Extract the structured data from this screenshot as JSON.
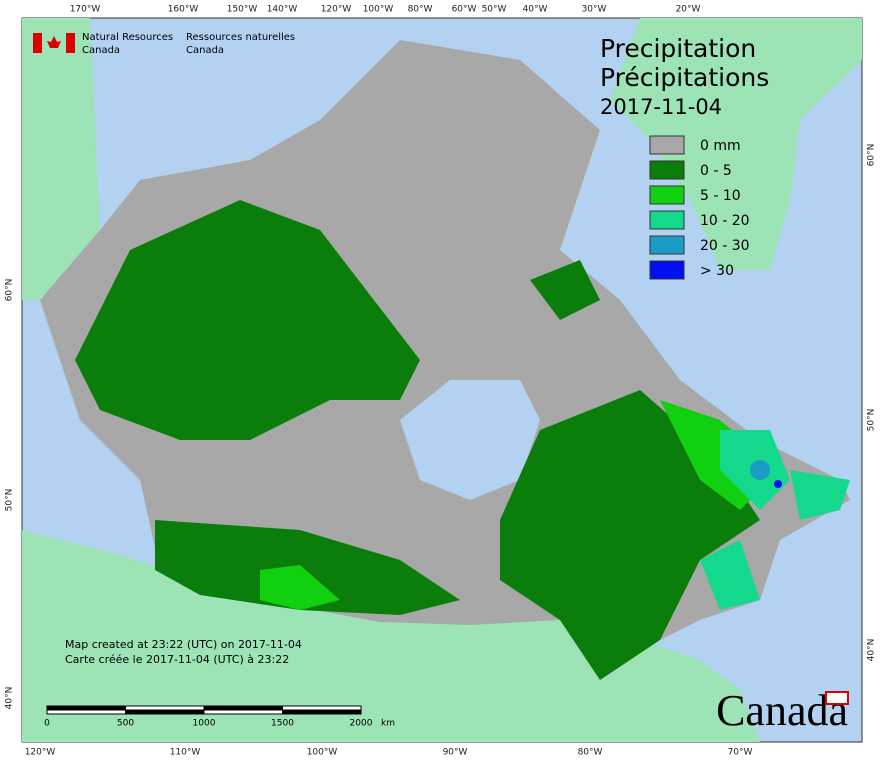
{
  "header": {
    "org_en": [
      "Natural Resources",
      "Canada"
    ],
    "org_fr": [
      "Ressources naturelles",
      "Canada"
    ]
  },
  "title": {
    "en": "Precipitation",
    "fr": "Précipitations",
    "date": "2017-11-04"
  },
  "legend": [
    {
      "label": "0 mm",
      "color": "#a8a8a8"
    },
    {
      "label": "0 - 5",
      "color": "#0a7d0a"
    },
    {
      "label": "5 - 10",
      "color": "#10d010"
    },
    {
      "label": "10 - 20",
      "color": "#14d98c"
    },
    {
      "label": "20 - 30",
      "color": "#1a9cc4"
    },
    {
      "label": "> 30",
      "color": "#0010f0"
    }
  ],
  "footer": {
    "created_en": "Map created at 23:22 (UTC) on 2017-11-04",
    "created_fr": "Carte créée le 2017-11-04 (UTC) à 23:22"
  },
  "scale_bar": {
    "labels": [
      "0",
      "500",
      "1000",
      "1500",
      "2000"
    ],
    "unit": "km"
  },
  "wordmark": "Canada",
  "graticule": {
    "top": [
      "170°W",
      "160°W",
      "150°W",
      "140°W",
      "120°W",
      "100°W",
      "80°W",
      "60°W",
      "50°W",
      "40°W",
      "30°W",
      "20°W"
    ],
    "bottom": [
      "120°W",
      "110°W",
      "100°W",
      "90°W",
      "80°W",
      "70°W"
    ],
    "left": [
      "60°N",
      "50°N",
      "40°N"
    ],
    "right": [
      "60°N",
      "50°N",
      "40°N"
    ]
  }
}
